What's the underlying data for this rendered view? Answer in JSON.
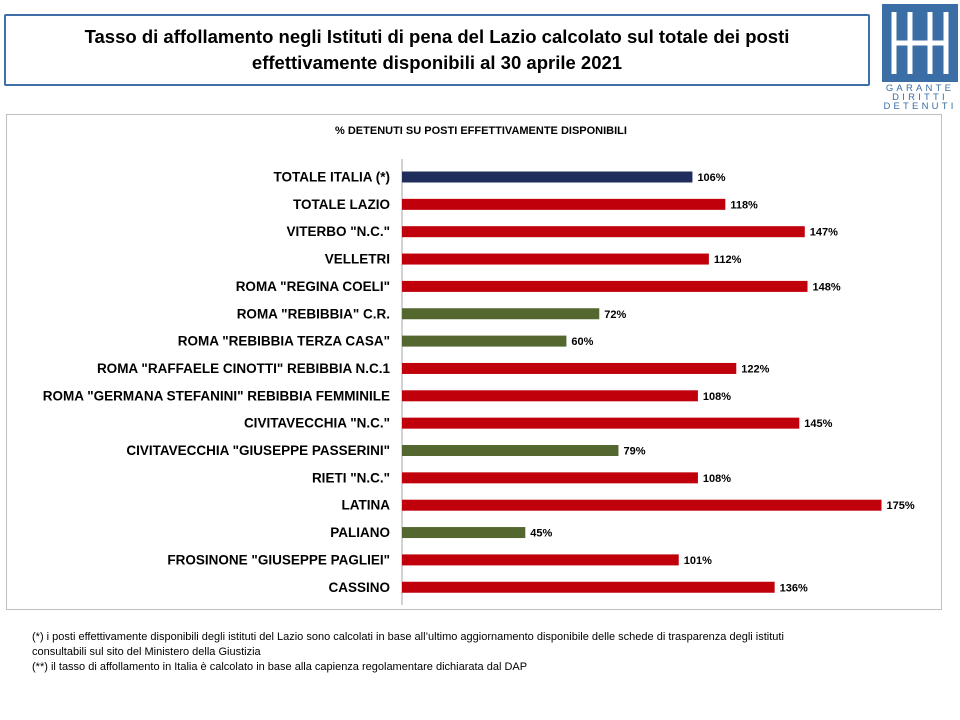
{
  "header": {
    "title_line1": "Tasso di affollamento negli Istituti di pena del Lazio calcolato sul totale dei posti",
    "title_line2": "effettivamente disponibili al 30 aprile 2021"
  },
  "logo": {
    "line1": "GARANTE",
    "line2": "DIRITTI",
    "line3": "DETENUTI",
    "color": "#3a6ea5"
  },
  "chart_data": {
    "type": "bar",
    "orientation": "horizontal",
    "title": "% DETENUTI SU POSTI EFFETTIVAMENTE DISPONIBILI",
    "categories": [
      "TOTALE ITALIA (*)",
      "TOTALE LAZIO",
      "VITERBO \"N.C.\"",
      "VELLETRI",
      "ROMA \"REGINA COELI\"",
      "ROMA \"REBIBBIA\" C.R.",
      "ROMA \"REBIBBIA TERZA CASA\"",
      "ROMA \"RAFFAELE CINOTTI\" REBIBBIA N.C.1",
      "ROMA \"GERMANA STEFANINI\" REBIBBIA FEMMINILE",
      "CIVITAVECCHIA \"N.C.\"",
      "CIVITAVECCHIA \"GIUSEPPE PASSERINI\"",
      "RIETI \"N.C.\"",
      "LATINA",
      "PALIANO",
      "FROSINONE \"GIUSEPPE PAGLIEI\"",
      "CASSINO"
    ],
    "values": [
      106,
      118,
      147,
      112,
      148,
      72,
      60,
      122,
      108,
      145,
      79,
      108,
      175,
      45,
      101,
      136
    ],
    "value_labels": [
      "106%",
      "118%",
      "147%",
      "112%",
      "148%",
      "72%",
      "60%",
      "122%",
      "108%",
      "145%",
      "79%",
      "108%",
      "175%",
      "45%",
      "101%",
      "136%"
    ],
    "colors": [
      "#1f2d5c",
      "#c0000b",
      "#c0000b",
      "#c0000b",
      "#c0000b",
      "#53672f",
      "#53672f",
      "#c0000b",
      "#c0000b",
      "#c0000b",
      "#53672f",
      "#c0000b",
      "#c0000b",
      "#53672f",
      "#c0000b",
      "#c0000b"
    ],
    "xlim": [
      0,
      200
    ],
    "grid": false,
    "legend": "none"
  },
  "notes": {
    "line1": "(*) i posti effettivamente disponibili  degli istituti del Lazio sono  calcolati in base all’ultimo aggiornamento disponibile  delle schede  di trasparenza degli istituti",
    "line2": "consultabili  sul sito del Ministero della Giustizia",
    "line3": "(**) il tasso di affollamento  in Italia è calcolato in base alla capienza regolamentare dichiarata dal DAP"
  }
}
